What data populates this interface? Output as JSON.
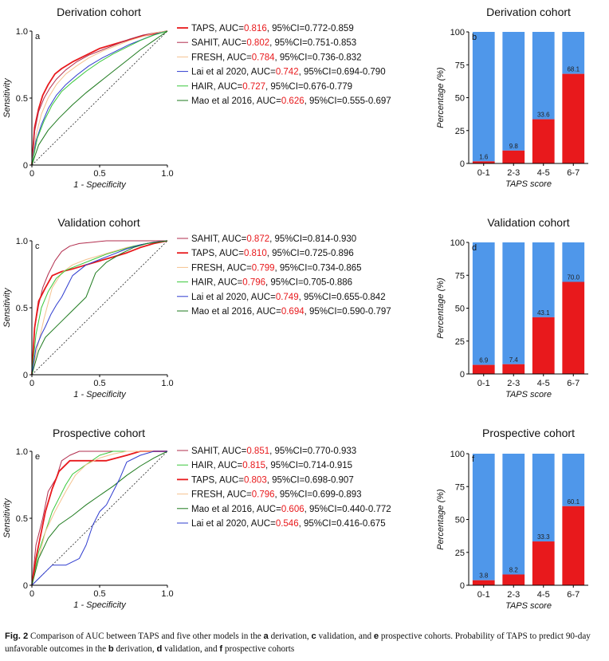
{
  "chart_data": [
    {
      "type": "line",
      "panel": "a",
      "title": "Derivation cohort",
      "xlabel": "1 - Specificity",
      "ylabel": "Sensitivity",
      "xlim": [
        0,
        1
      ],
      "ylim": [
        0,
        1
      ],
      "xticks": [
        "0",
        "0.5",
        "1.0"
      ],
      "yticks": [
        "0",
        "0.5",
        "1.0"
      ],
      "legend_position": "right",
      "series": [
        {
          "name": "TAPS",
          "prefix": "TAPS, AUC=",
          "auc": "0.816",
          "ci": ", 95%CI=0.772-0.859",
          "color": "#e8191c",
          "width": 1.8,
          "x": [
            0,
            0.02,
            0.05,
            0.08,
            0.12,
            0.17,
            0.22,
            0.3,
            0.4,
            0.5,
            0.6,
            0.7,
            0.8,
            0.9,
            1.0
          ],
          "y": [
            0,
            0.28,
            0.42,
            0.52,
            0.6,
            0.68,
            0.72,
            0.77,
            0.82,
            0.87,
            0.9,
            0.93,
            0.96,
            0.98,
            1.0
          ]
        },
        {
          "name": "SAHIT",
          "prefix": "SAHIT, AUC=",
          "auc": "0.802",
          "ci": ", 95%CI=0.751-0.853",
          "color": "#b22e4e",
          "width": 1,
          "x": [
            0,
            0.02,
            0.05,
            0.09,
            0.13,
            0.18,
            0.25,
            0.33,
            0.42,
            0.52,
            0.62,
            0.72,
            0.82,
            0.92,
            1.0
          ],
          "y": [
            0,
            0.25,
            0.4,
            0.5,
            0.57,
            0.64,
            0.71,
            0.77,
            0.82,
            0.86,
            0.9,
            0.94,
            0.97,
            0.99,
            1.0
          ]
        },
        {
          "name": "FRESH",
          "prefix": "FRESH, AUC=",
          "auc": "0.784",
          "ci": ", 95%CI=0.736-0.832",
          "color": "#f5c28f",
          "width": 1,
          "x": [
            0,
            0.03,
            0.07,
            0.12,
            0.18,
            0.25,
            0.33,
            0.42,
            0.52,
            0.62,
            0.72,
            0.82,
            0.92,
            1.0
          ],
          "y": [
            0,
            0.22,
            0.38,
            0.5,
            0.6,
            0.68,
            0.74,
            0.8,
            0.85,
            0.89,
            0.93,
            0.96,
            0.99,
            1.0
          ]
        },
        {
          "name": "Lai et al 2020",
          "prefix": "Lai et al 2020, AUC=",
          "auc": "0.742",
          "ci": ", 95%CI=0.694-0.790",
          "color": "#2f3ccf",
          "width": 1,
          "x": [
            0,
            0.03,
            0.07,
            0.12,
            0.18,
            0.25,
            0.33,
            0.42,
            0.52,
            0.62,
            0.72,
            0.82,
            0.92,
            1.0
          ],
          "y": [
            0,
            0.18,
            0.3,
            0.42,
            0.52,
            0.6,
            0.67,
            0.74,
            0.8,
            0.85,
            0.9,
            0.94,
            0.98,
            1.0
          ]
        },
        {
          "name": "HAIR",
          "prefix": "HAIR, AUC=",
          "auc": "0.727",
          "ci": ", 95%CI=0.676-0.779",
          "color": "#38c83a",
          "width": 1,
          "x": [
            0,
            0.04,
            0.09,
            0.15,
            0.22,
            0.3,
            0.4,
            0.5,
            0.6,
            0.7,
            0.8,
            0.9,
            1.0
          ],
          "y": [
            0,
            0.2,
            0.33,
            0.45,
            0.55,
            0.62,
            0.7,
            0.77,
            0.83,
            0.88,
            0.93,
            0.97,
            1.0
          ]
        },
        {
          "name": "Mao et al 2016",
          "prefix": "Mao et al 2016, AUC=",
          "auc": "0.626",
          "ci": ", 95%CI=0.555-0.697",
          "color": "#1d7a1d",
          "width": 1,
          "x": [
            0,
            0.05,
            0.12,
            0.2,
            0.3,
            0.4,
            0.5,
            0.6,
            0.7,
            0.8,
            0.9,
            1.0
          ],
          "y": [
            0,
            0.15,
            0.26,
            0.35,
            0.45,
            0.54,
            0.62,
            0.7,
            0.78,
            0.86,
            0.93,
            1.0
          ]
        }
      ]
    },
    {
      "type": "bar",
      "panel": "b",
      "title": "Derivation cohort",
      "xlabel": "TAPS score",
      "ylabel": "Percentage (%)",
      "ylim": [
        0,
        100
      ],
      "yticks": [
        "0",
        "25",
        "50",
        "75",
        "100"
      ],
      "categories": [
        "0-1",
        "2-3",
        "4-5",
        "6-7"
      ],
      "stacked": true,
      "series": [
        {
          "color": "#e8191c",
          "values": [
            1.6,
            9.8,
            33.6,
            68.1
          ],
          "labels": [
            "1.6",
            "9.8",
            "33.6",
            "68.1"
          ]
        },
        {
          "color": "#4f97ea",
          "values": [
            98.4,
            90.2,
            66.4,
            31.9
          ]
        }
      ]
    },
    {
      "type": "line",
      "panel": "c",
      "title": "Validation cohort",
      "xlabel": "1 - Specificity",
      "ylabel": "Sensitivity",
      "xlim": [
        0,
        1
      ],
      "ylim": [
        0,
        1
      ],
      "xticks": [
        "0",
        "0.5",
        "1.0"
      ],
      "yticks": [
        "0",
        "0.5",
        "1.0"
      ],
      "legend_position": "right",
      "series": [
        {
          "name": "SAHIT",
          "prefix": "SAHIT, AUC=",
          "auc": "0.872",
          "ci": ", 95%CI=0.814-0.930",
          "color": "#b22e4e",
          "width": 1,
          "x": [
            0,
            0.02,
            0.05,
            0.08,
            0.12,
            0.17,
            0.22,
            0.28,
            0.35,
            0.45,
            0.55,
            0.65,
            0.75,
            0.85,
            1.0
          ],
          "y": [
            0,
            0.35,
            0.52,
            0.65,
            0.75,
            0.85,
            0.92,
            0.96,
            0.98,
            0.99,
            1.0,
            1.0,
            1.0,
            1.0,
            1.0
          ]
        },
        {
          "name": "TAPS",
          "prefix": "TAPS, AUC=",
          "auc": "0.810",
          "ci": ", 95%CI=0.725-0.896",
          "color": "#e8191c",
          "width": 1.8,
          "x": [
            0,
            0.02,
            0.05,
            0.1,
            0.15,
            0.22,
            0.3,
            0.4,
            0.5,
            0.6,
            0.7,
            0.8,
            0.9,
            1.0
          ],
          "y": [
            0,
            0.35,
            0.55,
            0.65,
            0.74,
            0.77,
            0.79,
            0.82,
            0.85,
            0.88,
            0.91,
            0.95,
            0.98,
            1.0
          ]
        },
        {
          "name": "FRESH",
          "prefix": "FRESH, AUC=",
          "auc": "0.799",
          "ci": ", 95%CI=0.734-0.865",
          "color": "#f5c28f",
          "width": 1,
          "x": [
            0,
            0.04,
            0.09,
            0.15,
            0.22,
            0.3,
            0.4,
            0.5,
            0.6,
            0.7,
            0.8,
            0.9,
            1.0
          ],
          "y": [
            0,
            0.2,
            0.42,
            0.65,
            0.76,
            0.82,
            0.86,
            0.89,
            0.92,
            0.95,
            0.97,
            0.99,
            1.0
          ]
        },
        {
          "name": "HAIR",
          "prefix": "HAIR, AUC=",
          "auc": "0.796",
          "ci": ", 95%CI=0.705-0.886",
          "color": "#38c83a",
          "width": 1,
          "x": [
            0,
            0.03,
            0.07,
            0.12,
            0.18,
            0.25,
            0.35,
            0.45,
            0.55,
            0.65,
            0.75,
            0.85,
            1.0
          ],
          "y": [
            0,
            0.3,
            0.5,
            0.62,
            0.72,
            0.78,
            0.82,
            0.86,
            0.9,
            0.93,
            0.96,
            0.98,
            1.0
          ]
        },
        {
          "name": "Lai et al 2020",
          "prefix": "Lai et al 2020, AUC=",
          "auc": "0.749",
          "ci": ", 95%CI=0.655-0.842",
          "color": "#2f3ccf",
          "width": 1,
          "x": [
            0,
            0.03,
            0.07,
            0.1,
            0.14,
            0.18,
            0.22,
            0.26,
            0.3,
            0.4,
            0.5,
            0.6,
            0.7,
            0.8,
            0.9,
            1.0
          ],
          "y": [
            0,
            0.2,
            0.3,
            0.36,
            0.45,
            0.52,
            0.58,
            0.66,
            0.74,
            0.82,
            0.86,
            0.9,
            0.94,
            0.97,
            0.99,
            1.0
          ]
        },
        {
          "name": "Mao et al 2016",
          "prefix": "Mao et al 2016, AUC=",
          "auc": "0.694",
          "ci": ", 95%CI=0.590-0.797",
          "color": "#1d7a1d",
          "width": 1,
          "x": [
            0,
            0.05,
            0.1,
            0.2,
            0.3,
            0.4,
            0.47,
            0.55,
            0.65,
            0.75,
            0.85,
            1.0
          ],
          "y": [
            0,
            0.18,
            0.28,
            0.38,
            0.48,
            0.58,
            0.76,
            0.84,
            0.9,
            0.95,
            0.98,
            1.0
          ]
        }
      ]
    },
    {
      "type": "bar",
      "panel": "d",
      "title": "Validation cohort",
      "xlabel": "TAPS score",
      "ylabel": "Percentage (%)",
      "ylim": [
        0,
        100
      ],
      "yticks": [
        "0",
        "25",
        "50",
        "75",
        "100"
      ],
      "categories": [
        "0-1",
        "2-3",
        "4-5",
        "6-7"
      ],
      "stacked": true,
      "series": [
        {
          "color": "#e8191c",
          "values": [
            6.9,
            7.4,
            43.1,
            70.0
          ],
          "labels": [
            "6.9",
            "7.4",
            "43.1",
            "70.0"
          ]
        },
        {
          "color": "#4f97ea",
          "values": [
            93.1,
            92.6,
            56.9,
            30.0
          ]
        }
      ]
    },
    {
      "type": "line",
      "panel": "e",
      "title": "Prospective cohort",
      "xlabel": "1 - Specificity",
      "ylabel": "Sensitivity",
      "xlim": [
        0,
        1
      ],
      "ylim": [
        0,
        1
      ],
      "xticks": [
        "0",
        "0.5",
        "1.0"
      ],
      "yticks": [
        "0",
        "0.5",
        "1.0"
      ],
      "legend_position": "right",
      "series": [
        {
          "name": "SAHIT",
          "prefix": "SAHIT, AUC=",
          "auc": "0.851",
          "ci": ", 95%CI=0.770-0.933",
          "color": "#b22e4e",
          "width": 1,
          "x": [
            0,
            0.03,
            0.08,
            0.12,
            0.18,
            0.22,
            0.28,
            0.35,
            0.45,
            0.55,
            0.65,
            0.75,
            1.0
          ],
          "y": [
            0,
            0.3,
            0.5,
            0.7,
            0.8,
            0.93,
            0.97,
            1.0,
            1.0,
            1.0,
            1.0,
            1.0,
            1.0
          ]
        },
        {
          "name": "HAIR",
          "prefix": "HAIR, AUC=",
          "auc": "0.815",
          "ci": ", 95%CI=0.714-0.915",
          "color": "#38c83a",
          "width": 1,
          "x": [
            0,
            0.05,
            0.1,
            0.15,
            0.2,
            0.25,
            0.3,
            0.4,
            0.5,
            0.6,
            0.7,
            1.0
          ],
          "y": [
            0,
            0.25,
            0.4,
            0.55,
            0.65,
            0.75,
            0.83,
            0.9,
            0.97,
            1.0,
            1.0,
            1.0
          ]
        },
        {
          "name": "TAPS",
          "prefix": "TAPS, AUC=",
          "auc": "0.803",
          "ci": ", 95%CI=0.698-0.907",
          "color": "#e8191c",
          "width": 1.8,
          "x": [
            0,
            0.03,
            0.06,
            0.1,
            0.15,
            0.2,
            0.28,
            0.4,
            0.55,
            0.7,
            0.8,
            0.9,
            1.0
          ],
          "y": [
            0,
            0.2,
            0.35,
            0.55,
            0.72,
            0.85,
            0.93,
            0.93,
            0.93,
            0.97,
            1.0,
            1.0,
            1.0
          ]
        },
        {
          "name": "FRESH",
          "prefix": "FRESH, AUC=",
          "auc": "0.796",
          "ci": ", 95%CI=0.699-0.893",
          "color": "#f5c28f",
          "width": 1,
          "x": [
            0,
            0.05,
            0.1,
            0.17,
            0.25,
            0.32,
            0.4,
            0.5,
            0.6,
            0.7,
            0.8,
            1.0
          ],
          "y": [
            0,
            0.2,
            0.4,
            0.55,
            0.7,
            0.82,
            0.9,
            0.95,
            0.98,
            1.0,
            1.0,
            1.0
          ]
        },
        {
          "name": "Mao et al 2016",
          "prefix": "Mao et al 2016, AUC=",
          "auc": "0.606",
          "ci": ", 95%CI=0.440-0.772",
          "color": "#1d7a1d",
          "width": 1,
          "x": [
            0,
            0.05,
            0.12,
            0.2,
            0.3,
            0.4,
            0.5,
            0.6,
            0.7,
            0.8,
            0.9,
            1.0
          ],
          "y": [
            0,
            0.2,
            0.35,
            0.45,
            0.52,
            0.6,
            0.67,
            0.74,
            0.82,
            0.89,
            0.95,
            1.0
          ]
        },
        {
          "name": "Lai et al 2020",
          "prefix": "Lai et al 2020, AUC=",
          "auc": "0.546",
          "ci": ", 95%CI=0.416-0.675",
          "color": "#2f3ccf",
          "width": 1,
          "x": [
            0,
            0.05,
            0.1,
            0.15,
            0.25,
            0.35,
            0.4,
            0.45,
            0.5,
            0.55,
            0.6,
            0.65,
            0.7,
            0.8,
            0.9,
            1.0
          ],
          "y": [
            0,
            0.05,
            0.1,
            0.15,
            0.15,
            0.2,
            0.3,
            0.45,
            0.55,
            0.6,
            0.7,
            0.8,
            0.92,
            0.97,
            1.0,
            1.0
          ]
        }
      ]
    },
    {
      "type": "bar",
      "panel": "f",
      "title": "Prospective cohort",
      "xlabel": "TAPS score",
      "ylabel": "Percentage (%)",
      "ylim": [
        0,
        100
      ],
      "yticks": [
        "0",
        "25",
        "50",
        "75",
        "100"
      ],
      "categories": [
        "0-1",
        "2-3",
        "4-5",
        "6-7"
      ],
      "stacked": true,
      "series": [
        {
          "color": "#e8191c",
          "values": [
            3.8,
            8.2,
            33.3,
            60.1
          ],
          "labels": [
            "3.8",
            "8.2",
            "33.3",
            "60.1"
          ]
        },
        {
          "color": "#4f97ea",
          "values": [
            96.2,
            91.8,
            66.7,
            39.9
          ]
        }
      ]
    }
  ],
  "caption": {
    "fig": "Fig. 2",
    "segments": [
      {
        "t": "  Comparison of AUC between TAPS and five other models in the ",
        "b": false
      },
      {
        "t": "a",
        "b": true
      },
      {
        "t": " derivation, ",
        "b": false
      },
      {
        "t": "c",
        "b": true
      },
      {
        "t": " validation, and ",
        "b": false
      },
      {
        "t": "e",
        "b": true
      },
      {
        "t": " prospective cohorts. Probability of TAPS to predict 90-day unfavorable outcomes in the ",
        "b": false
      },
      {
        "t": "b",
        "b": true
      },
      {
        "t": " derivation, ",
        "b": false
      },
      {
        "t": "d",
        "b": true
      },
      {
        "t": " validation, and ",
        "b": false
      },
      {
        "t": "f",
        "b": true
      },
      {
        "t": " prospective cohorts",
        "b": false
      }
    ]
  }
}
